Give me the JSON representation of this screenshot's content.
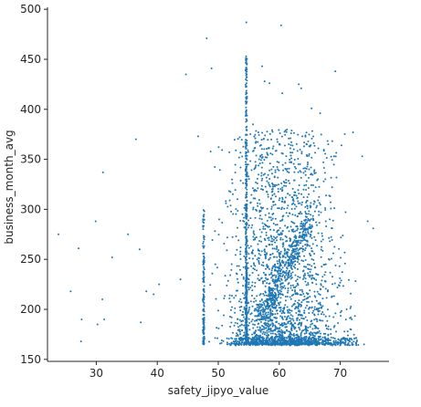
{
  "chart_data": {
    "type": "scatter",
    "title": "",
    "xlabel": "safety_jipyo_value",
    "ylabel": "business_month_avg",
    "xlim": [
      22,
      78
    ],
    "ylim": [
      148,
      502
    ],
    "xticks": [
      30,
      40,
      50,
      60,
      70
    ],
    "yticks": [
      150,
      200,
      250,
      300,
      350,
      400,
      450,
      500
    ],
    "grid": false,
    "legend": "none",
    "point_color": "#1f77b4",
    "points_approx_count": 3500,
    "notable_points": [
      {
        "x": 23.8,
        "y": 275
      },
      {
        "x": 25.8,
        "y": 218
      },
      {
        "x": 27.1,
        "y": 261
      },
      {
        "x": 27.5,
        "y": 168
      },
      {
        "x": 27.6,
        "y": 190
      },
      {
        "x": 29.9,
        "y": 288
      },
      {
        "x": 30.2,
        "y": 185
      },
      {
        "x": 31.1,
        "y": 337
      },
      {
        "x": 31.0,
        "y": 210
      },
      {
        "x": 31.3,
        "y": 190
      },
      {
        "x": 32.6,
        "y": 252
      },
      {
        "x": 35.2,
        "y": 275
      },
      {
        "x": 36.5,
        "y": 370
      },
      {
        "x": 37.1,
        "y": 260
      },
      {
        "x": 37.3,
        "y": 187
      },
      {
        "x": 38.2,
        "y": 218
      },
      {
        "x": 39.4,
        "y": 215
      },
      {
        "x": 40.3,
        "y": 225
      },
      {
        "x": 43.8,
        "y": 230
      },
      {
        "x": 44.7,
        "y": 435
      },
      {
        "x": 46.7,
        "y": 373
      },
      {
        "x": 48.1,
        "y": 471
      },
      {
        "x": 48.9,
        "y": 441
      },
      {
        "x": 54.6,
        "y": 487
      },
      {
        "x": 55.7,
        "y": 385
      },
      {
        "x": 57.2,
        "y": 443
      },
      {
        "x": 57.6,
        "y": 428
      },
      {
        "x": 58.4,
        "y": 426
      },
      {
        "x": 60.3,
        "y": 484
      },
      {
        "x": 60.5,
        "y": 416
      },
      {
        "x": 63.2,
        "y": 425
      },
      {
        "x": 63.6,
        "y": 421
      },
      {
        "x": 65.3,
        "y": 401
      },
      {
        "x": 66.7,
        "y": 396
      },
      {
        "x": 69.2,
        "y": 438
      },
      {
        "x": 70.2,
        "y": 364
      },
      {
        "x": 72.1,
        "y": 377
      },
      {
        "x": 73.6,
        "y": 353
      },
      {
        "x": 74.5,
        "y": 288
      },
      {
        "x": 75.4,
        "y": 281
      },
      {
        "x": 73.9,
        "y": 165
      }
    ],
    "clusters": [
      {
        "kind": "vertical_line",
        "x": 54.6,
        "y_min": 165,
        "y_max": 455,
        "count": 500
      },
      {
        "kind": "vertical_line",
        "x": 47.6,
        "y_min": 165,
        "y_max": 300,
        "count": 160
      },
      {
        "kind": "diagonal_band",
        "x_start": 57,
        "x_end": 65,
        "y_start": 190,
        "y_end": 290,
        "count": 400
      },
      {
        "kind": "dense_region",
        "x_min": 47,
        "x_max": 74,
        "y_min": 165,
        "y_max": 380,
        "count": 2200
      },
      {
        "kind": "floor_band",
        "x_min": 52,
        "x_max": 73,
        "y_min": 164,
        "y_max": 172,
        "count": 350
      }
    ]
  }
}
